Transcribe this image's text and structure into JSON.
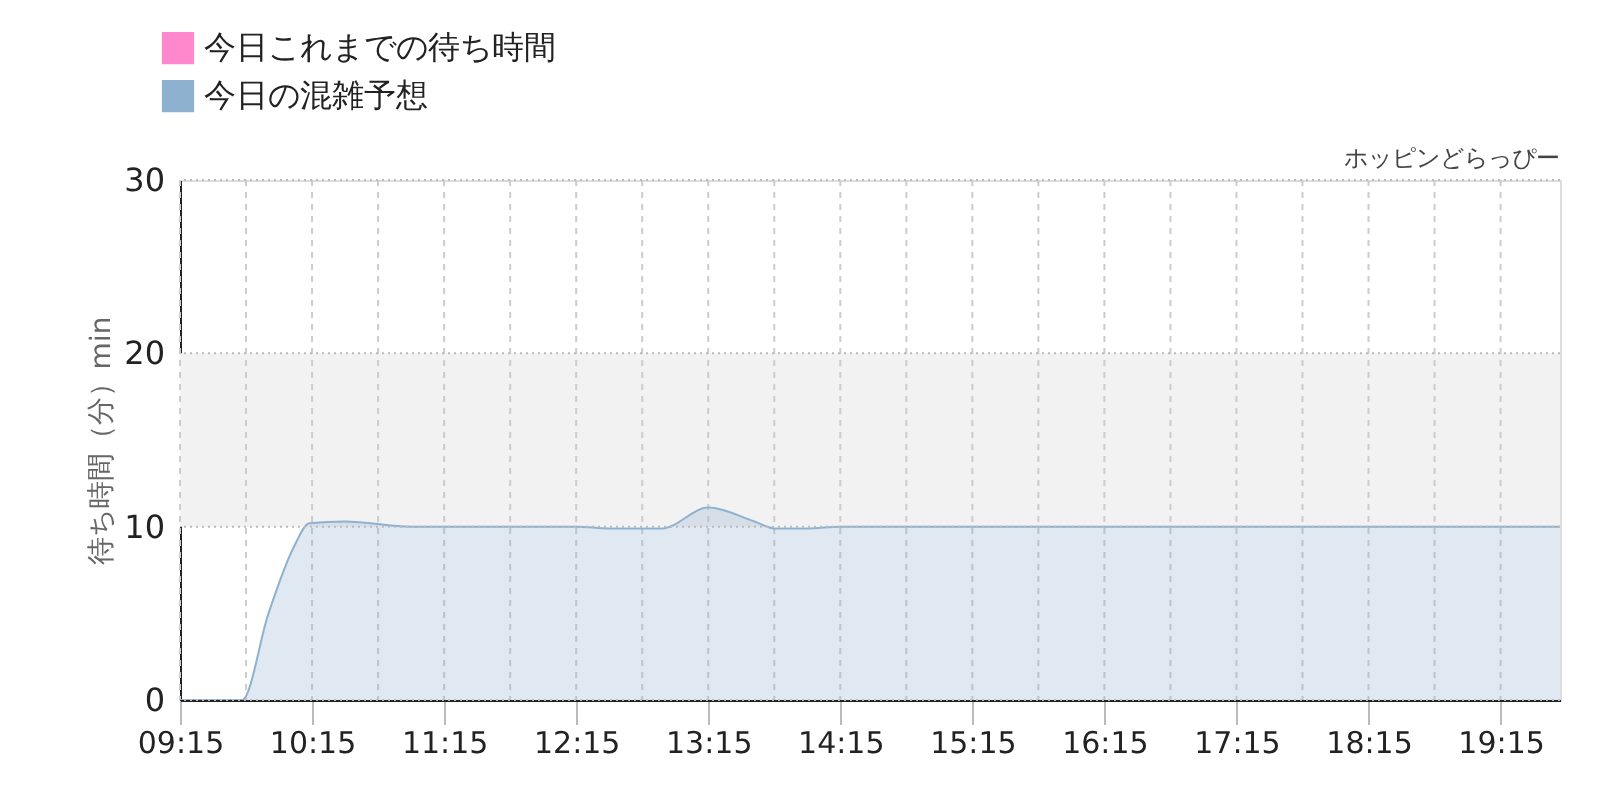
{
  "chart_data": {
    "type": "area",
    "ylabel": "待ち時間（分）min",
    "annotations": [
      "ホッピンどらっぴー"
    ],
    "x": [
      9.25,
      9.5,
      9.72,
      9.92,
      10.11,
      10.23,
      10.5,
      11.0,
      11.5,
      12.0,
      12.25,
      12.5,
      12.9,
      13.25,
      13.6,
      13.75,
      14.0,
      14.25,
      15.0,
      16.0,
      17.0,
      18.0,
      19.0,
      19.7
    ],
    "series": [
      {
        "name": "今日これまでの待ち時間",
        "color": "#ff88cc",
        "values": [
          null,
          null,
          null,
          null,
          null,
          null,
          null,
          null,
          null,
          null,
          null,
          null,
          null,
          null,
          null,
          null,
          null,
          null,
          null,
          null,
          null,
          null,
          null,
          null
        ]
      },
      {
        "name": "今日の混雑予想",
        "color": "#8fb1d0",
        "values": [
          0,
          0,
          0,
          5.0,
          8.8,
          10.2,
          10.3,
          10.0,
          10.0,
          10.0,
          10.0,
          9.9,
          9.9,
          11.1,
          10.3,
          9.9,
          9.9,
          10.0,
          10.0,
          10.0,
          10.0,
          10.0,
          10.0,
          10.0
        ]
      }
    ],
    "xlim": [
      9.25,
      19.7
    ],
    "xticks": [
      {
        "value": 9.25,
        "label": "09:15"
      },
      {
        "value": 9.75,
        "label": null
      },
      {
        "value": 10.25,
        "label": "10:15"
      },
      {
        "value": 10.75,
        "label": null
      },
      {
        "value": 11.25,
        "label": "11:15"
      },
      {
        "value": 11.75,
        "label": null
      },
      {
        "value": 12.25,
        "label": "12:15"
      },
      {
        "value": 12.75,
        "label": null
      },
      {
        "value": 13.25,
        "label": "13:15"
      },
      {
        "value": 13.75,
        "label": null
      },
      {
        "value": 14.25,
        "label": "14:15"
      },
      {
        "value": 14.75,
        "label": null
      },
      {
        "value": 15.25,
        "label": "15:15"
      },
      {
        "value": 15.75,
        "label": null
      },
      {
        "value": 16.25,
        "label": "16:15"
      },
      {
        "value": 16.75,
        "label": null
      },
      {
        "value": 17.25,
        "label": "17:15"
      },
      {
        "value": 17.75,
        "label": null
      },
      {
        "value": 18.25,
        "label": "18:15"
      },
      {
        "value": 18.75,
        "label": null
      },
      {
        "value": 19.25,
        "label": "19:15"
      }
    ],
    "ylim": [
      0,
      30
    ],
    "yticks": [
      0,
      10,
      20,
      30
    ],
    "bands": [
      {
        "axis": "y",
        "from": 10,
        "to": 20,
        "color": "#f2f2f2"
      }
    ],
    "grid": true,
    "legend": "top left"
  }
}
